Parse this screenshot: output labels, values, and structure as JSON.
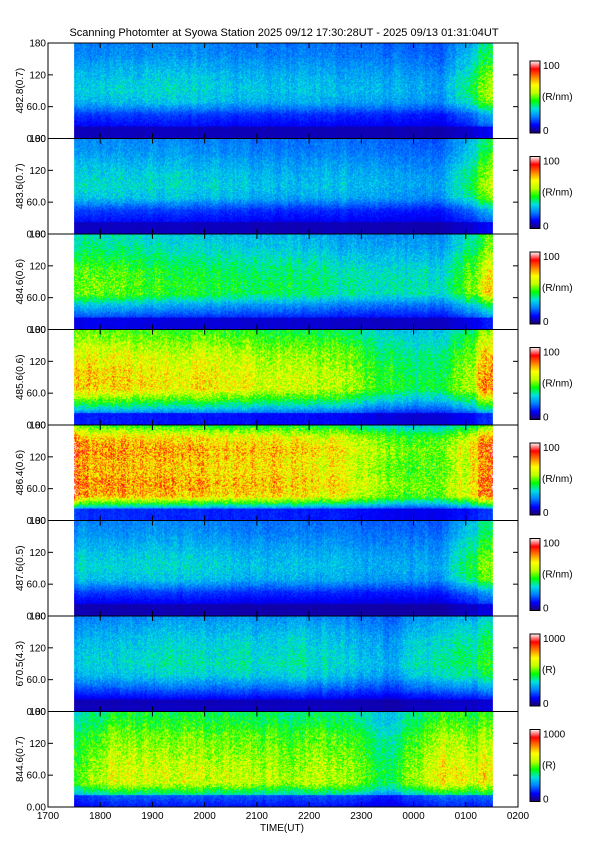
{
  "chart_data": {
    "type": "heatmap",
    "title": "Scanning Photomter at Syowa Station 2025 09/12 17:30:28UT - 2025 09/13 01:31:04UT",
    "xlabel": "TIME(UT)",
    "x_ticks": [
      "1700",
      "1800",
      "1900",
      "2000",
      "2100",
      "2200",
      "2300",
      "0000",
      "0100",
      "0200"
    ],
    "x_range_hours": [
      17,
      26
    ],
    "data_x_range_hours": [
      17.5,
      25.52
    ],
    "y_ticks": [
      "0.00",
      "60.0",
      "120",
      "180"
    ],
    "y_tick_values": [
      0,
      60,
      120,
      180
    ],
    "ylim": [
      0,
      180
    ],
    "colormap": [
      "#1c006b",
      "#0000ff",
      "#0080ff",
      "#00e0e0",
      "#00ff00",
      "#c0ff00",
      "#ffff00",
      "#ff8000",
      "#ff0000",
      "#ffffff"
    ],
    "panels": [
      {
        "label": "482.8(0.7)",
        "cb_max": "100",
        "cb_min": "0",
        "cb_unit": "(R/nm)",
        "intensity": 0.33,
        "profile": [
          0.35,
          0.35,
          0.5,
          0.9,
          1.0,
          0.95,
          0.85,
          0.75,
          0.7
        ],
        "time_mod": [
          0.9,
          1.0,
          1.0,
          0.95,
          0.9,
          0.9,
          0.85,
          0.8,
          1.6
        ]
      },
      {
        "label": "483.6(0.7)",
        "cb_max": "100",
        "cb_min": "0",
        "cb_unit": "(R/nm)",
        "intensity": 0.33,
        "profile": [
          0.35,
          0.35,
          0.5,
          0.9,
          1.0,
          0.95,
          0.85,
          0.75,
          0.7
        ],
        "time_mod": [
          1.0,
          1.0,
          1.0,
          0.95,
          0.9,
          0.9,
          0.85,
          0.8,
          1.6
        ]
      },
      {
        "label": "484.6(0.6)",
        "cb_max": "100",
        "cb_min": "0",
        "cb_unit": "(R/nm)",
        "intensity": 0.42,
        "profile": [
          0.35,
          0.35,
          0.6,
          1.0,
          1.0,
          0.95,
          0.85,
          0.75,
          0.7
        ],
        "time_mod": [
          1.2,
          1.15,
          1.05,
          1.0,
          0.95,
          0.9,
          0.85,
          0.8,
          1.5
        ]
      },
      {
        "label": "485.6(0.6)",
        "cb_max": "100",
        "cb_min": "0",
        "cb_unit": "(R/nm)",
        "intensity": 0.55,
        "profile": [
          0.35,
          0.35,
          0.7,
          1.0,
          1.0,
          0.95,
          0.9,
          0.8,
          0.7
        ],
        "time_mod": [
          1.3,
          1.25,
          1.2,
          1.15,
          1.1,
          1.05,
          0.8,
          0.75,
          1.3
        ]
      },
      {
        "label": "486.4(0.6)",
        "cb_max": "100",
        "cb_min": "0",
        "cb_unit": "(R/nm)",
        "intensity": 0.62,
        "profile": [
          0.35,
          0.35,
          0.95,
          1.0,
          0.95,
          0.95,
          1.0,
          0.9,
          0.6
        ],
        "time_mod": [
          1.3,
          1.25,
          1.2,
          1.15,
          1.15,
          1.1,
          0.85,
          0.8,
          1.3
        ]
      },
      {
        "label": "487.6(0.5)",
        "cb_max": "100",
        "cb_min": "0",
        "cb_unit": "(R/nm)",
        "intensity": 0.33,
        "profile": [
          0.3,
          0.3,
          0.5,
          0.9,
          1.0,
          0.95,
          0.85,
          0.75,
          0.7
        ],
        "time_mod": [
          1.0,
          1.0,
          1.0,
          0.95,
          0.9,
          0.9,
          0.85,
          0.8,
          1.6
        ]
      },
      {
        "label": "670.5(4.3)",
        "cb_max": "1000",
        "cb_min": "0",
        "cb_unit": "(R)",
        "intensity": 0.34,
        "profile": [
          0.35,
          0.3,
          0.6,
          0.9,
          1.0,
          0.95,
          0.9,
          0.8,
          0.7
        ],
        "time_mod": [
          0.9,
          1.0,
          1.05,
          1.05,
          1.05,
          1.0,
          0.8,
          1.1,
          1.2
        ]
      },
      {
        "label": "844.6(0.7)",
        "cb_max": "1000",
        "cb_min": "0",
        "cb_unit": "(R)",
        "intensity": 0.5,
        "profile": [
          0.4,
          0.6,
          1.0,
          1.0,
          0.95,
          0.9,
          0.85,
          0.75,
          0.7
        ],
        "time_mod": [
          1.0,
          1.25,
          1.2,
          1.15,
          1.1,
          1.15,
          0.8,
          1.3,
          1.15
        ]
      }
    ]
  }
}
